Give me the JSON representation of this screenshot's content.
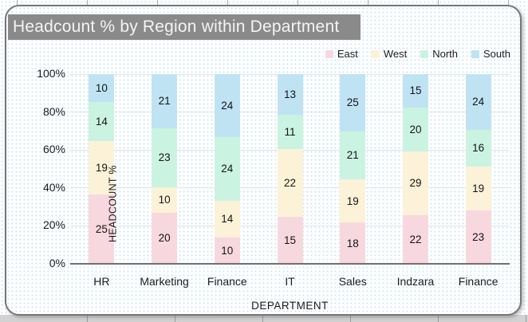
{
  "title": "Headcount % by Region within Department",
  "colors": {
    "title_bar_bg": "#8a8a8a",
    "title_text": "#f4f4f4",
    "east": "#f8d8df",
    "west": "#fcf2d7",
    "north": "#cbf3e1",
    "south": "#bfe3f3",
    "gridline": "#e3e3e3",
    "axis_line": "#6f6f6f",
    "chart_border": "#787878",
    "background_dot": "#cbe7f4"
  },
  "chart_data": {
    "type": "bar",
    "stacked": "percent",
    "title": "Headcount % by Region within Department",
    "xlabel": "DEPARTMENT",
    "ylabel": "HEADCOUNT %",
    "categories": [
      "HR",
      "Marketing",
      "Finance",
      "IT",
      "Sales",
      "Indzara",
      "Finance"
    ],
    "series": [
      {
        "name": "East",
        "color": "#f8d8df",
        "values": [
          25,
          20,
          10,
          15,
          18,
          22,
          23
        ]
      },
      {
        "name": "West",
        "color": "#fcf2d7",
        "values": [
          19,
          10,
          14,
          22,
          19,
          29,
          19
        ]
      },
      {
        "name": "North",
        "color": "#cbf3e1",
        "values": [
          14,
          23,
          24,
          11,
          21,
          20,
          16
        ]
      },
      {
        "name": "South",
        "color": "#bfe3f3",
        "values": [
          10,
          21,
          24,
          13,
          25,
          15,
          24
        ]
      }
    ],
    "y_ticks": [
      "100%",
      "80%",
      "60%",
      "40%",
      "20%",
      "0%"
    ],
    "ylim": [
      0,
      100
    ],
    "grid": true,
    "legend_position": "top-right",
    "data_labels": true
  }
}
